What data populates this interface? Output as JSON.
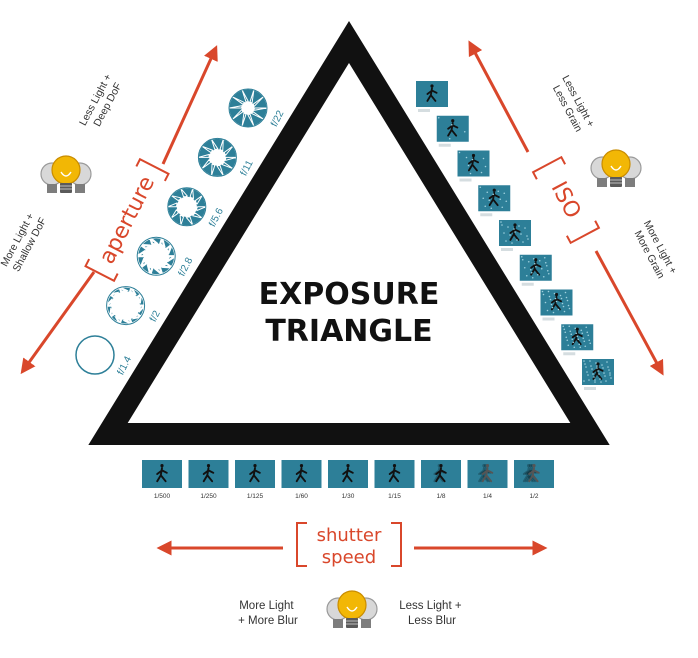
{
  "title": {
    "line1": "EXPOSURE",
    "line2": "TRIANGLE"
  },
  "colors": {
    "accent": "#d9472b",
    "teal": "#2d7f98",
    "triangle": "#111111",
    "bulb": "#f2b705"
  },
  "aperture": {
    "label": "aperture",
    "top_note": [
      "Less Light +",
      "Deep DoF"
    ],
    "bottom_note": [
      "More Light +",
      "Shallow DoF"
    ],
    "stops": [
      {
        "label": "f/1.4",
        "level": 0
      },
      {
        "label": "f/2",
        "level": 1
      },
      {
        "label": "f/2.8",
        "level": 2
      },
      {
        "label": "f/5.6",
        "level": 3
      },
      {
        "label": "f/11",
        "level": 4
      },
      {
        "label": "f/22",
        "level": 5
      }
    ]
  },
  "iso": {
    "label": "ISO",
    "top_note": [
      "Less Light +",
      "Less Grain"
    ],
    "bottom_note": [
      "More Light +",
      "More Grain"
    ],
    "frame_count": 9
  },
  "shutter": {
    "label_line1": "shutter",
    "label_line2": "speed",
    "left_note": [
      "More Light",
      "+ More Blur"
    ],
    "right_note": [
      "Less Light +",
      "Less Blur"
    ],
    "speeds": [
      "1/500",
      "1/250",
      "1/125",
      "1/60",
      "1/30",
      "1/15",
      "1/8",
      "1/4",
      "1/2"
    ]
  }
}
